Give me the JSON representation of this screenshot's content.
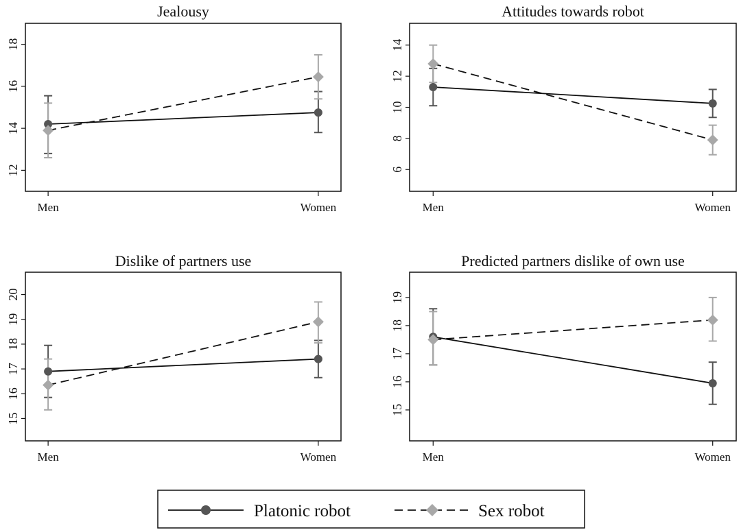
{
  "chart_data": [
    {
      "type": "line",
      "title": "Jealousy",
      "categories": [
        "Men",
        "Women"
      ],
      "ylim": [
        11,
        19
      ],
      "yticks": [
        12,
        14,
        16,
        18
      ],
      "series": [
        {
          "name": "Platonic robot",
          "values": [
            14.2,
            14.75
          ],
          "ci_low": [
            12.8,
            13.8
          ],
          "ci_high": [
            15.55,
            15.75
          ]
        },
        {
          "name": "Sex robot",
          "values": [
            13.9,
            16.45
          ],
          "ci_low": [
            12.6,
            15.4
          ],
          "ci_high": [
            15.2,
            17.5
          ]
        }
      ]
    },
    {
      "type": "line",
      "title": "Attitudes towards robot",
      "categories": [
        "Men",
        "Women"
      ],
      "ylim": [
        4.6,
        15.4
      ],
      "yticks": [
        6,
        8,
        10,
        12,
        14
      ],
      "series": [
        {
          "name": "Platonic robot",
          "values": [
            11.3,
            10.25
          ],
          "ci_low": [
            10.1,
            9.35
          ],
          "ci_high": [
            12.5,
            11.15
          ]
        },
        {
          "name": "Sex robot",
          "values": [
            12.8,
            7.9
          ],
          "ci_low": [
            11.6,
            6.95
          ],
          "ci_high": [
            14.0,
            8.85
          ]
        }
      ]
    },
    {
      "type": "line",
      "title": "Dislike of partners use",
      "categories": [
        "Men",
        "Women"
      ],
      "ylim": [
        14.1,
        20.9
      ],
      "yticks": [
        15,
        16,
        17,
        18,
        19,
        20
      ],
      "series": [
        {
          "name": "Platonic robot",
          "values": [
            16.9,
            17.4
          ],
          "ci_low": [
            15.85,
            16.65
          ],
          "ci_high": [
            17.95,
            18.15
          ]
        },
        {
          "name": "Sex robot",
          "values": [
            16.35,
            18.9
          ],
          "ci_low": [
            15.35,
            18.05
          ],
          "ci_high": [
            17.4,
            19.7
          ]
        }
      ]
    },
    {
      "type": "line",
      "title": "Predicted partners dislike of own use",
      "categories": [
        "Men",
        "Women"
      ],
      "ylim": [
        13.9,
        19.9
      ],
      "yticks": [
        15,
        16,
        17,
        18,
        19
      ],
      "series": [
        {
          "name": "Platonic robot",
          "values": [
            17.6,
            15.95
          ],
          "ci_low": [
            16.6,
            15.2
          ],
          "ci_high": [
            18.6,
            16.7
          ]
        },
        {
          "name": "Sex robot",
          "values": [
            17.5,
            18.2
          ],
          "ci_low": [
            16.6,
            17.45
          ],
          "ci_high": [
            18.5,
            19.0
          ]
        }
      ]
    }
  ],
  "legend": {
    "placement": "bottom",
    "items": [
      {
        "label": "Platonic robot",
        "style": "solid",
        "marker": "circle",
        "color": "#555555"
      },
      {
        "label": "Sex robot",
        "style": "dashed",
        "marker": "diamond",
        "color": "#a8a8a8"
      }
    ]
  }
}
